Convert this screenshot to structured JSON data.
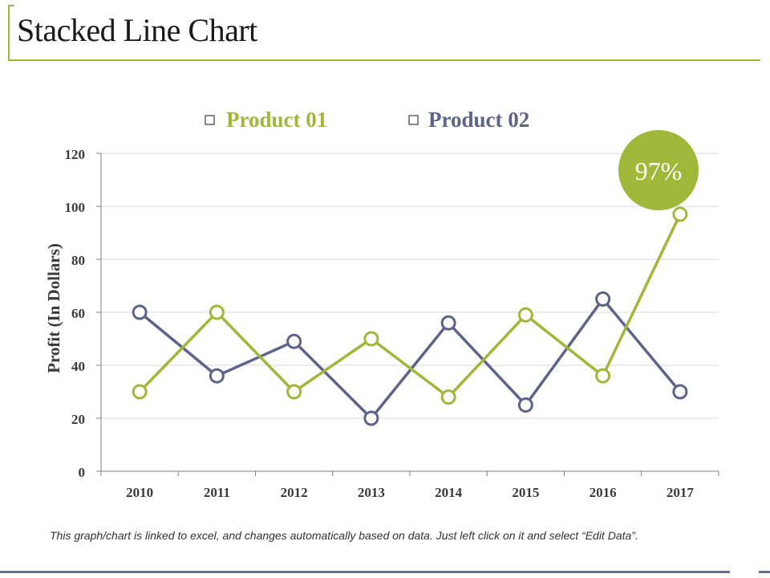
{
  "page": {
    "title": "Stacked Line Chart",
    "footnote": "This graph/chart is linked to excel, and changes automatically based on data. Just left click on it and select “Edit Data”."
  },
  "colors": {
    "accent": "#a4b53a",
    "product01": "#9fb83a",
    "product02": "#5d6389",
    "grid": "#d9d9d9",
    "axis": "#7f7f7f",
    "text": "#3a3a3a"
  },
  "chart_data": {
    "type": "line",
    "title": "",
    "xlabel": "",
    "ylabel": "Profit (In Dollars)",
    "categories": [
      "2010",
      "2011",
      "2012",
      "2013",
      "2014",
      "2015",
      "2016",
      "2017"
    ],
    "ylim": [
      0,
      120
    ],
    "yticks": [
      0,
      20,
      40,
      60,
      80,
      100,
      120
    ],
    "grid": true,
    "legend": "top",
    "series": [
      {
        "name": "Product 01",
        "values": [
          30,
          60,
          30,
          50,
          28,
          59,
          36,
          97
        ]
      },
      {
        "name": "Product 02",
        "values": [
          60,
          36,
          49,
          20,
          56,
          25,
          65,
          30
        ]
      }
    ],
    "annotation": {
      "text": "97%",
      "series": "Product 01",
      "category": "2017"
    }
  }
}
